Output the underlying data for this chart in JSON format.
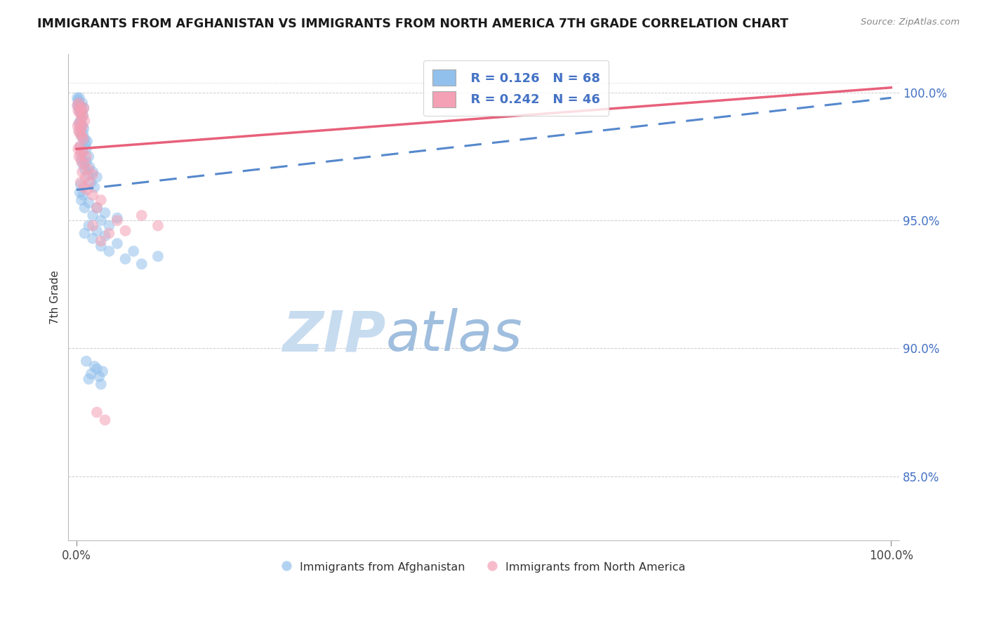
{
  "title": "IMMIGRANTS FROM AFGHANISTAN VS IMMIGRANTS FROM NORTH AMERICA 7TH GRADE CORRELATION CHART",
  "source": "Source: ZipAtlas.com",
  "ylabel": "7th Grade",
  "legend_R1": "R = 0.126",
  "legend_N1": "N = 68",
  "legend_R2": "R = 0.242",
  "legend_N2": "N = 46",
  "color_blue": "#92C0EC",
  "color_pink": "#F4A0B5",
  "color_blue_line": "#5588CC",
  "color_pink_line": "#E8607A",
  "color_axis_text": "#4472C4",
  "color_legend_text": "#4472C4",
  "watermark_zip": "#C8DCF0",
  "watermark_atlas": "#A0BEDE",
  "label_afghanistan": "Immigrants from Afghanistan",
  "label_north_america": "Immigrants from North America",
  "xlim": [
    -1,
    101
  ],
  "ylim": [
    82.5,
    101.5
  ],
  "y_ticks": [
    85,
    90,
    95,
    100
  ],
  "y_tick_labels": [
    "85.0%",
    "90.0%",
    "95.0%",
    "100.0%"
  ],
  "afg_x": [
    0.1,
    0.15,
    0.2,
    0.25,
    0.3,
    0.35,
    0.4,
    0.5,
    0.6,
    0.7,
    0.8,
    0.9,
    0.3,
    0.4,
    0.5,
    0.6,
    0.7,
    0.8,
    0.9,
    1.0,
    1.1,
    1.2,
    1.3,
    1.5,
    0.5,
    0.6,
    0.7,
    0.8,
    1.0,
    1.2,
    1.4,
    1.6,
    1.8,
    2.0,
    2.2,
    2.5,
    0.4,
    0.5,
    0.6,
    0.8,
    1.0,
    1.5,
    2.0,
    2.5,
    3.0,
    3.5,
    4.0,
    5.0,
    1.0,
    1.5,
    2.0,
    2.5,
    3.0,
    3.5,
    4.0,
    5.0,
    6.0,
    7.0,
    8.0,
    10.0,
    1.5,
    2.5,
    3.0,
    1.2,
    1.8,
    2.2,
    2.8,
    3.2
  ],
  "afg_y": [
    99.8,
    99.5,
    99.7,
    99.6,
    99.4,
    99.8,
    99.3,
    99.5,
    99.2,
    99.6,
    99.1,
    99.4,
    98.8,
    98.5,
    98.9,
    98.3,
    98.7,
    98.4,
    98.6,
    98.2,
    98.0,
    97.8,
    98.1,
    97.5,
    97.9,
    97.4,
    97.7,
    97.2,
    97.0,
    97.3,
    96.8,
    97.1,
    96.5,
    96.9,
    96.3,
    96.7,
    96.1,
    96.4,
    95.8,
    96.0,
    95.5,
    95.7,
    95.2,
    95.5,
    95.0,
    95.3,
    94.8,
    95.1,
    94.5,
    94.8,
    94.3,
    94.6,
    94.0,
    94.4,
    93.8,
    94.1,
    93.5,
    93.8,
    93.3,
    93.6,
    88.8,
    89.2,
    88.6,
    89.5,
    89.0,
    89.3,
    88.9,
    89.1
  ],
  "na_x": [
    0.1,
    0.2,
    0.3,
    0.4,
    0.5,
    0.6,
    0.7,
    0.8,
    0.9,
    1.0,
    0.15,
    0.25,
    0.35,
    0.45,
    0.55,
    0.65,
    0.75,
    0.85,
    0.2,
    0.3,
    0.4,
    0.5,
    0.6,
    0.8,
    1.0,
    1.2,
    1.5,
    2.0,
    0.5,
    0.7,
    0.9,
    1.1,
    1.3,
    1.6,
    2.0,
    2.5,
    3.0,
    2.0,
    3.0,
    4.0,
    5.0,
    6.0,
    8.0,
    2.5,
    3.5,
    10.0
  ],
  "na_y": [
    99.5,
    99.3,
    99.6,
    99.2,
    99.4,
    99.0,
    99.3,
    99.1,
    99.4,
    98.9,
    98.7,
    98.5,
    98.8,
    98.4,
    98.6,
    98.3,
    98.7,
    98.2,
    97.8,
    97.5,
    97.9,
    97.6,
    97.3,
    97.7,
    97.2,
    97.5,
    97.0,
    96.8,
    96.5,
    96.9,
    96.3,
    96.7,
    96.2,
    96.5,
    96.0,
    95.5,
    95.8,
    94.8,
    94.2,
    94.5,
    95.0,
    94.6,
    95.2,
    87.5,
    87.2,
    94.8
  ],
  "blue_line_x": [
    0,
    100
  ],
  "blue_line_y": [
    96.2,
    99.8
  ],
  "pink_line_x": [
    0,
    100
  ],
  "pink_line_y": [
    97.8,
    100.2
  ]
}
